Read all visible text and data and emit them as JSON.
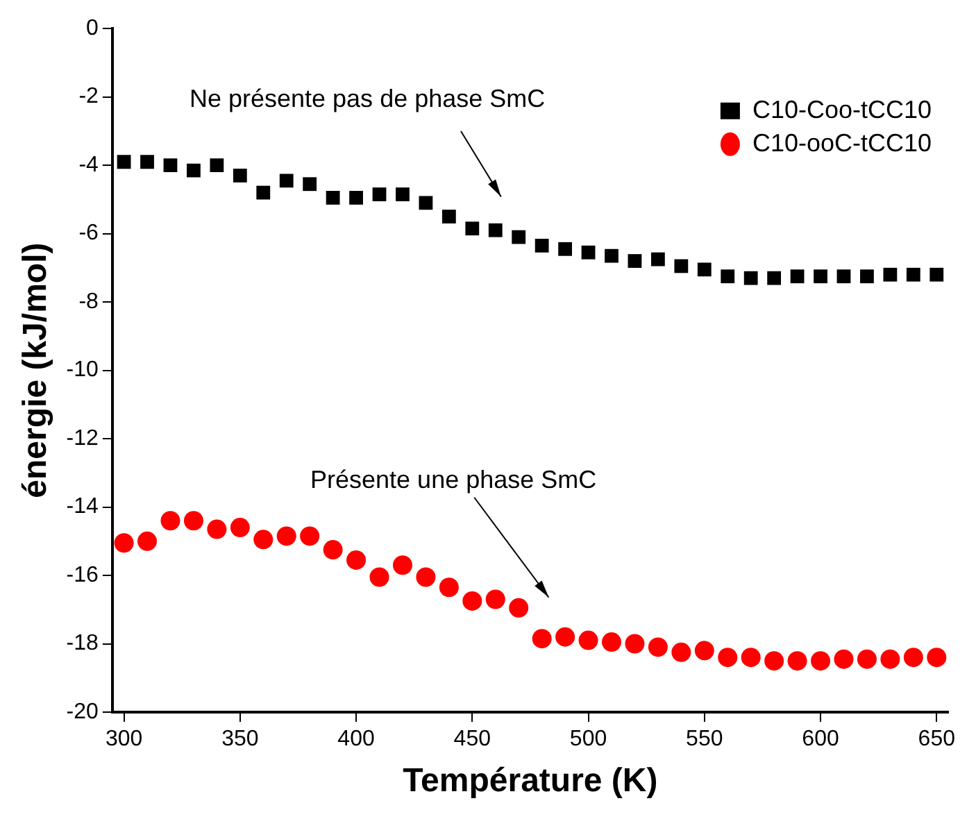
{
  "chart_data": {
    "type": "scatter",
    "xlabel": "Température (K)",
    "ylabel": "énergie (kJ/mol)",
    "x": [
      300,
      310,
      320,
      330,
      340,
      350,
      360,
      370,
      380,
      390,
      400,
      410,
      420,
      430,
      440,
      450,
      460,
      470,
      480,
      490,
      500,
      510,
      520,
      530,
      540,
      550,
      560,
      570,
      580,
      590,
      600,
      610,
      620,
      630,
      640,
      650
    ],
    "series": [
      {
        "name": "C10-Coo-tCC10",
        "color": "#000000",
        "marker": "square",
        "values": [
          -3.9,
          -3.9,
          -4.0,
          -4.15,
          -4.0,
          -4.3,
          -4.8,
          -4.45,
          -4.55,
          -4.95,
          -4.95,
          -4.85,
          -4.85,
          -5.1,
          -5.5,
          -5.85,
          -5.9,
          -6.1,
          -6.35,
          -6.45,
          -6.55,
          -6.65,
          -6.8,
          -6.75,
          -6.95,
          -7.05,
          -7.25,
          -7.3,
          -7.3,
          -7.25,
          -7.25,
          -7.25,
          -7.25,
          -7.2,
          -7.2,
          -7.2
        ]
      },
      {
        "name": "C10-ooC-tCC10",
        "color": "#ff0000",
        "marker": "circle",
        "values": [
          -15.05,
          -15.0,
          -14.4,
          -14.4,
          -14.65,
          -14.6,
          -14.95,
          -14.85,
          -14.85,
          -15.25,
          -15.55,
          -16.05,
          -15.7,
          -16.05,
          -16.35,
          -16.75,
          -16.7,
          -16.95,
          -17.85,
          -17.8,
          -17.9,
          -17.95,
          -18.0,
          -18.1,
          -18.25,
          -18.2,
          -18.4,
          -18.4,
          -18.5,
          -18.5,
          -18.5,
          -18.45,
          -18.45,
          -18.45,
          -18.4,
          -18.4
        ]
      }
    ],
    "xlim": [
      295,
      655
    ],
    "xticks": [
      300,
      350,
      400,
      450,
      500,
      550,
      600,
      650
    ],
    "ylim": [
      -20,
      0
    ],
    "yticks": [
      0,
      -2,
      -4,
      -6,
      -8,
      -10,
      -12,
      -14,
      -16,
      -18,
      -20
    ],
    "grid": false,
    "legend": "top right",
    "annotations": [
      "Ne présente pas de phase SmC",
      "Présente une phase SmC"
    ]
  }
}
